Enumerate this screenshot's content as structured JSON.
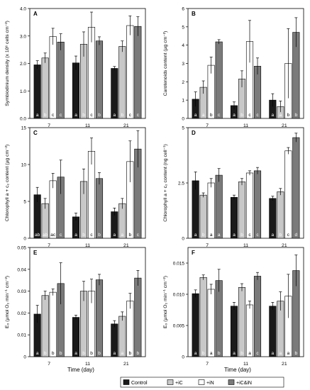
{
  "figure": {
    "xlabel": "Time (day)",
    "legend": [
      "Control",
      "+iC",
      "+iN",
      "+iC&iN"
    ],
    "colors": {
      "control": "#1a1a1a",
      "ic": "#c8c8c8",
      "in": "#ffffff",
      "icin": "#7a7a7a"
    }
  },
  "chart_data": [
    {
      "type": "bar",
      "panel": "A",
      "categories": [
        "7",
        "11",
        "21"
      ],
      "ylabel": "Symbiodinium density (x 10⁶ cells cm⁻²)",
      "ylim": [
        0,
        4
      ],
      "yticks": [
        "0.0",
        "1.0",
        "2.0",
        "3.0",
        "4.0"
      ],
      "series": [
        {
          "name": "Control",
          "values": [
            1.95,
            2.02,
            1.82
          ],
          "errors": [
            0.15,
            0.25,
            0.07
          ]
        },
        {
          "name": "+iC",
          "values": [
            2.2,
            2.7,
            2.62
          ],
          "errors": [
            0.18,
            0.45,
            0.2
          ]
        },
        {
          "name": "+iN",
          "values": [
            2.98,
            3.32,
            3.38
          ],
          "errors": [
            0.3,
            0.55,
            0.35
          ]
        },
        {
          "name": "+iC&iN",
          "values": [
            2.78,
            2.82,
            3.35
          ],
          "errors": [
            0.3,
            0.15,
            0.35
          ]
        }
      ],
      "letters": [
        [
          "a",
          "b",
          "c",
          "c"
        ],
        [
          "a",
          "b",
          "c",
          "b"
        ],
        [
          "a",
          "b",
          "c",
          "c"
        ]
      ]
    },
    {
      "type": "bar",
      "panel": "B",
      "categories": [
        "7",
        "11",
        "21"
      ],
      "ylabel": "Carotenoids content (µg cm⁻²)",
      "ylim": [
        0,
        6
      ],
      "yticks": [
        "0",
        "1",
        "2",
        "3",
        "4",
        "5",
        "6"
      ],
      "series": [
        {
          "name": "Control",
          "values": [
            1.05,
            0.7,
            1.0
          ],
          "errors": [
            0.4,
            0.2,
            0.35
          ]
        },
        {
          "name": "+iC",
          "values": [
            1.7,
            2.15,
            0.65
          ],
          "errors": [
            0.35,
            0.45,
            0.3
          ]
        },
        {
          "name": "+iN",
          "values": [
            2.9,
            4.2,
            3.0
          ],
          "errors": [
            0.45,
            1.15,
            1.9
          ]
        },
        {
          "name": "+iC&iN",
          "values": [
            4.18,
            2.85,
            4.7
          ],
          "errors": [
            0.12,
            0.45,
            0.8
          ]
        }
      ],
      "letters": [
        [
          "a",
          "a",
          "b",
          "c"
        ],
        [
          "a",
          "b",
          "c",
          "c"
        ],
        [
          "a",
          "a",
          "b",
          "b"
        ]
      ]
    },
    {
      "type": "bar",
      "panel": "C",
      "categories": [
        "7",
        "11",
        "21"
      ],
      "ylabel": "Chlorophyll a + c₂ content (µg cm⁻²)",
      "ylim": [
        0,
        15
      ],
      "yticks": [
        "0",
        "5",
        "10",
        "15"
      ],
      "series": [
        {
          "name": "Control",
          "values": [
            5.9,
            2.9,
            3.6
          ],
          "errors": [
            1.0,
            0.5,
            0.5
          ]
        },
        {
          "name": "+iC",
          "values": [
            4.7,
            7.7,
            4.7
          ],
          "errors": [
            0.7,
            1.7,
            0.7
          ]
        },
        {
          "name": "+iN",
          "values": [
            7.8,
            11.8,
            10.4
          ],
          "errors": [
            1.0,
            1.8,
            2.8
          ]
        },
        {
          "name": "+iC&iN",
          "values": [
            8.3,
            8.1,
            12.1
          ],
          "errors": [
            2.3,
            0.8,
            2.5
          ]
        }
      ],
      "letters": [
        [
          "ab",
          "ab",
          "ac",
          "c"
        ],
        [
          "a",
          "b",
          "c",
          "b"
        ],
        [
          "a",
          "a",
          "b",
          "c"
        ]
      ]
    },
    {
      "type": "bar",
      "panel": "D",
      "categories": [
        "7",
        "11",
        "21"
      ],
      "ylabel": "Chlorophyll a + c₂ content (ng cell⁻¹)",
      "ylim": [
        0,
        5
      ],
      "yticks": [
        "0",
        "2.5",
        "5"
      ],
      "series": [
        {
          "name": "Control",
          "values": [
            2.6,
            1.85,
            1.8
          ],
          "errors": [
            0.4,
            0.1,
            0.1
          ]
        },
        {
          "name": "+iC",
          "values": [
            1.95,
            2.55,
            2.1
          ],
          "errors": [
            0.1,
            0.15,
            0.15
          ]
        },
        {
          "name": "+iN",
          "values": [
            2.5,
            2.95,
            3.95
          ],
          "errors": [
            0.2,
            0.1,
            0.15
          ]
        },
        {
          "name": "+iC&iN",
          "values": [
            2.85,
            3.05,
            4.55
          ],
          "errors": [
            0.3,
            0.15,
            0.2
          ]
        }
      ],
      "letters": [
        [
          "a",
          "b",
          "a",
          "a"
        ],
        [
          "a",
          "b",
          "c",
          "c"
        ],
        [
          "a",
          "b",
          "c",
          "d"
        ]
      ]
    },
    {
      "type": "bar",
      "panel": "E",
      "categories": [
        "7",
        "11",
        "21"
      ],
      "ylabel": "E₀ (µmol O₂ min⁻¹ cm⁻²)",
      "ylim": [
        0,
        0.05
      ],
      "yticks": [
        "0",
        "0.01",
        "0.02",
        "0.03",
        "0.04",
        "0.05"
      ],
      "series": [
        {
          "name": "Control",
          "values": [
            0.0195,
            0.018,
            0.015
          ],
          "errors": [
            0.004,
            0.001,
            0.0015
          ]
        },
        {
          "name": "+iC",
          "values": [
            0.028,
            0.03,
            0.0185
          ],
          "errors": [
            0.002,
            0.0045,
            0.002
          ]
        },
        {
          "name": "+iN",
          "values": [
            0.0295,
            0.03,
            0.0255
          ],
          "errors": [
            0.0015,
            0.0055,
            0.0035
          ]
        },
        {
          "name": "+iC&iN",
          "values": [
            0.0335,
            0.0352,
            0.036
          ],
          "errors": [
            0.0095,
            0.0025,
            0.0035
          ]
        }
      ],
      "letters": [
        [
          "a",
          "b",
          "b",
          "b"
        ],
        [
          "a",
          "b",
          "b",
          "b"
        ],
        [
          "a",
          "a",
          "b",
          "b"
        ]
      ]
    },
    {
      "type": "bar",
      "panel": "F",
      "categories": [
        "7",
        "11",
        "21"
      ],
      "ylabel": "E₀ (µmol O₂ min⁻¹ cm⁻²)",
      "ylim": [
        0,
        0.0175
      ],
      "yticks": [
        "0",
        "0.005",
        "0.010",
        "0.015"
      ],
      "series": [
        {
          "name": "Control",
          "values": [
            0.0101,
            0.0081,
            0.0081
          ],
          "errors": [
            0.0006,
            0.0006,
            0.0006
          ]
        },
        {
          "name": "+iC",
          "values": [
            0.0127,
            0.0111,
            0.0089
          ],
          "errors": [
            0.0004,
            0.0006,
            0.0015
          ]
        },
        {
          "name": "+iN",
          "values": [
            0.0108,
            0.0083,
            0.0097
          ],
          "errors": [
            0.0008,
            0.0006,
            0.0035
          ]
        },
        {
          "name": "+iC&iN",
          "values": [
            0.0122,
            0.0129,
            0.0138
          ],
          "errors": [
            0.0018,
            0.0006,
            0.0025
          ]
        }
      ],
      "letters": [
        [
          "a",
          "b",
          "a",
          "b"
        ],
        [
          "a",
          "b",
          "a",
          "c"
        ],
        [
          "a",
          "a",
          "a",
          "b"
        ]
      ]
    }
  ]
}
